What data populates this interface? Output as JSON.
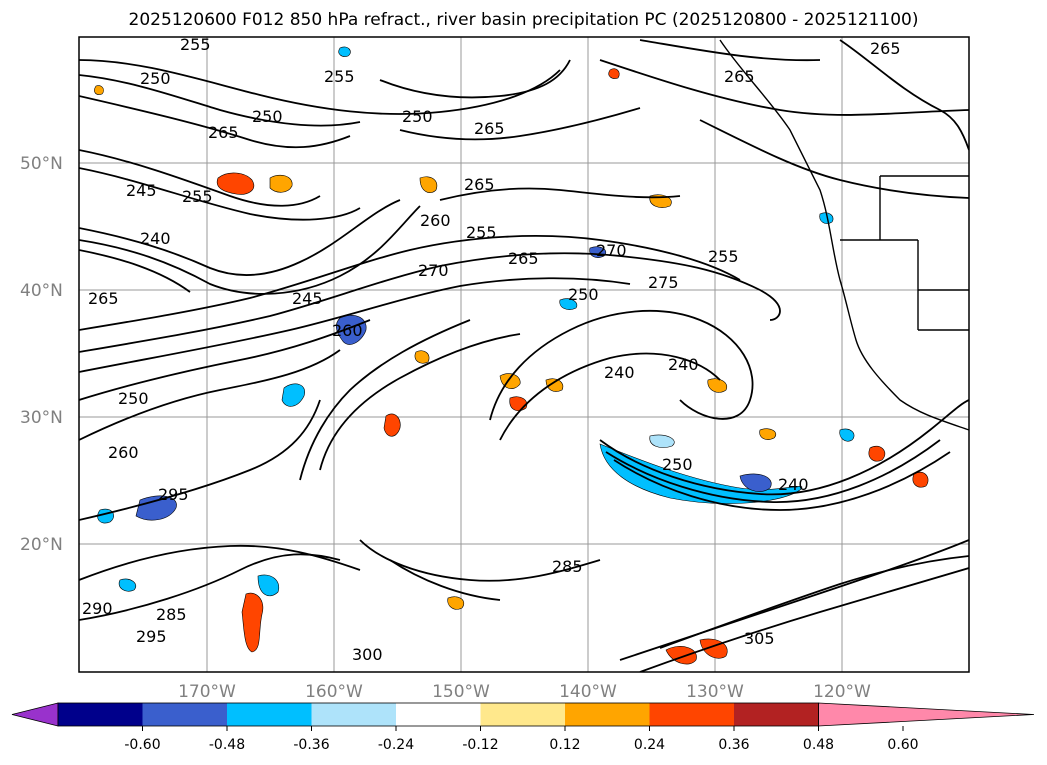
{
  "title": "2025120600 F012 850 hPa refract., river basin precipitation PC (2025120800 - 2025121100)",
  "map": {
    "lat_labels": [
      "50°N",
      "40°N",
      "30°N",
      "20°N"
    ],
    "lon_labels": [
      "170°W",
      "160°W",
      "150°W",
      "140°W",
      "130°W",
      "120°W"
    ],
    "contour_labels": [
      "255",
      "250",
      "265",
      "255",
      "250",
      "265",
      "250",
      "265",
      "245",
      "255",
      "265",
      "260",
      "240",
      "255",
      "270",
      "265",
      "265",
      "255",
      "270",
      "250",
      "275",
      "250",
      "240",
      "240",
      "250",
      "240",
      "285",
      "260",
      "295",
      "285",
      "290",
      "305",
      "300",
      "295",
      "265",
      "245",
      "260"
    ],
    "colors": {
      "contour": "#000000",
      "grid": "#808080",
      "coast": "#000000"
    }
  },
  "colorbar": {
    "ticks": [
      "-0.60",
      "-0.48",
      "-0.36",
      "-0.24",
      "-0.12",
      "0.12",
      "0.24",
      "0.36",
      "0.48",
      "0.60"
    ],
    "colors": [
      "#9932cc",
      "#00008b",
      "#3a5fcd",
      "#00bfff",
      "#aee3fa",
      "#ffffff",
      "#ffe88c",
      "#ffa500",
      "#ff4500",
      "#b22222",
      "#ff88aa"
    ]
  }
}
